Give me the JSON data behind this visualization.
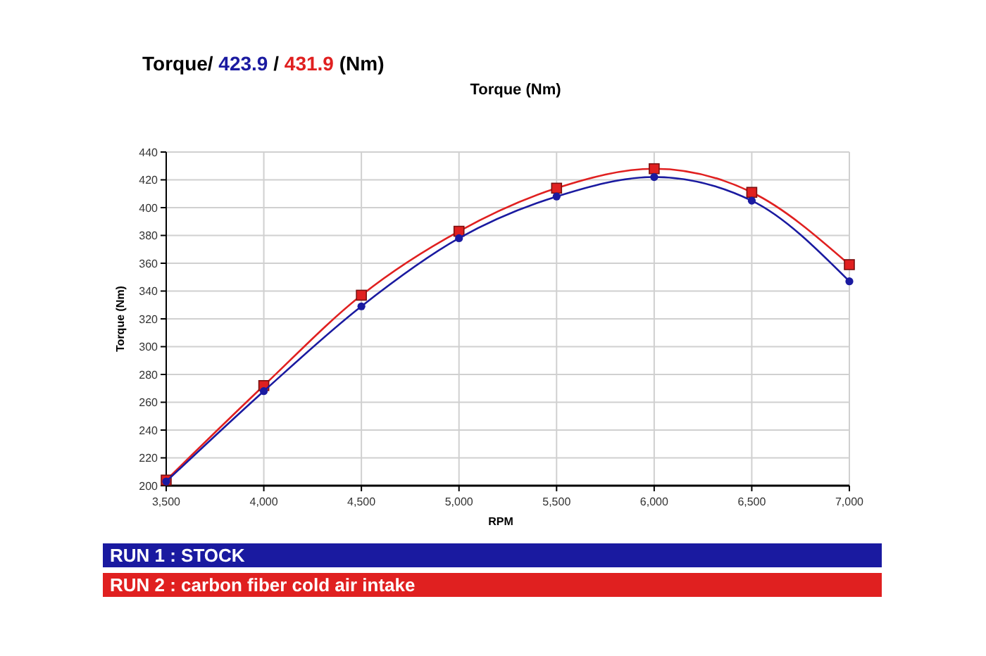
{
  "chart_data": {
    "type": "line",
    "title": "Torque (Nm)",
    "xlabel": "RPM",
    "ylabel": "Torque (Nm)",
    "annotations": [
      "Torque/",
      "423.9",
      "/",
      "431.9",
      "(Nm)"
    ],
    "x": [
      3500,
      4000,
      4500,
      5000,
      5500,
      6000,
      6500,
      7000
    ],
    "series": [
      {
        "name": "RUN 1 : STOCK",
        "color": "#1a1aa0",
        "marker": "circle",
        "values": [
          203,
          268,
          329,
          378,
          408,
          422,
          405,
          347
        ]
      },
      {
        "name": "RUN 2 : carbon fiber cold air intake",
        "color": "#e02020",
        "marker": "square",
        "values": [
          204,
          272,
          337,
          383,
          414,
          428,
          411,
          359
        ]
      }
    ],
    "xlim": [
      3500,
      7000
    ],
    "xticks": [
      {
        "value": 3500,
        "label": "3,500"
      },
      {
        "value": 4000,
        "label": "4,000"
      },
      {
        "value": 4500,
        "label": "4,500"
      },
      {
        "value": 5000,
        "label": "5,000"
      },
      {
        "value": 5500,
        "label": "5,500"
      },
      {
        "value": 6000,
        "label": "6,000"
      },
      {
        "value": 6500,
        "label": "6,500"
      },
      {
        "value": 7000,
        "label": "7,000"
      }
    ],
    "ylim": [
      200,
      440
    ],
    "yticks": [
      200,
      220,
      240,
      260,
      280,
      300,
      320,
      340,
      360,
      380,
      400,
      420,
      440
    ],
    "grid": true,
    "legend": "bottom"
  }
}
